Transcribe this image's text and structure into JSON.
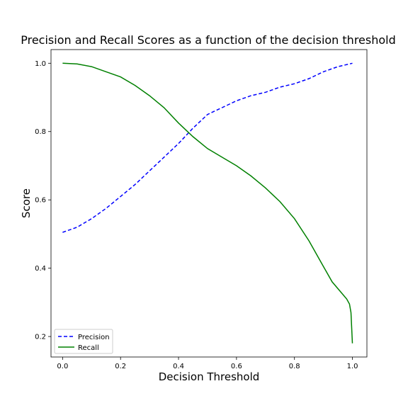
{
  "chart_data": {
    "type": "line",
    "title": "Precision and Recall Scores as a function of the decision threshold",
    "xlabel": "Decision Threshold",
    "ylabel": "Score",
    "xlim": [
      -0.04,
      1.05
    ],
    "ylim": [
      0.14,
      1.04
    ],
    "xticks": [
      "0.0",
      "0.2",
      "0.4",
      "0.6",
      "0.8",
      "1.0"
    ],
    "yticks": [
      "0.2",
      "0.4",
      "0.6",
      "0.8",
      "1.0"
    ],
    "grid": false,
    "legend": "lower-left",
    "series": [
      {
        "name": "Precision",
        "color": "#0000ff",
        "style": "dashed",
        "x": [
          0.0,
          0.05,
          0.1,
          0.15,
          0.2,
          0.25,
          0.3,
          0.35,
          0.4,
          0.45,
          0.5,
          0.55,
          0.6,
          0.65,
          0.7,
          0.75,
          0.8,
          0.85,
          0.9,
          0.95,
          1.0
        ],
        "y": [
          0.505,
          0.52,
          0.545,
          0.575,
          0.61,
          0.645,
          0.685,
          0.725,
          0.765,
          0.81,
          0.85,
          0.87,
          0.89,
          0.905,
          0.915,
          0.93,
          0.94,
          0.955,
          0.975,
          0.99,
          1.0
        ]
      },
      {
        "name": "Recall",
        "color": "#008000",
        "style": "solid",
        "x": [
          0.0,
          0.05,
          0.1,
          0.15,
          0.2,
          0.25,
          0.3,
          0.35,
          0.4,
          0.45,
          0.5,
          0.55,
          0.6,
          0.65,
          0.7,
          0.75,
          0.8,
          0.85,
          0.9,
          0.93,
          0.96,
          0.98,
          0.99,
          0.995,
          1.0
        ],
        "y": [
          1.0,
          0.998,
          0.99,
          0.975,
          0.96,
          0.935,
          0.905,
          0.87,
          0.825,
          0.785,
          0.75,
          0.725,
          0.7,
          0.67,
          0.635,
          0.595,
          0.545,
          0.48,
          0.405,
          0.36,
          0.33,
          0.31,
          0.295,
          0.27,
          0.18
        ]
      }
    ]
  }
}
